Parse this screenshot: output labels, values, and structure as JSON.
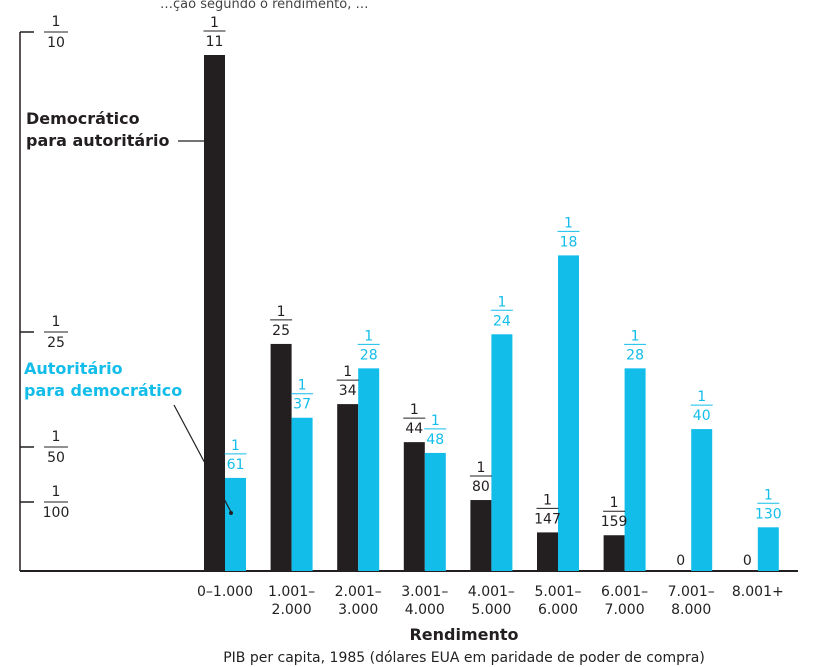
{
  "top_partial_text": "…ção segundo o rendimento, …",
  "chart_data": {
    "type": "bar",
    "title": "",
    "xlabel": "Rendimento",
    "xsublabel": "PIB per capita, 1985 (dólares EUA em paridade de poder de compra)",
    "ylabel": "",
    "categories": [
      [
        "0–1.000",
        ""
      ],
      [
        "1.001–",
        "2.000"
      ],
      [
        "2.001–",
        "3.000"
      ],
      [
        "3.001–",
        "4.000"
      ],
      [
        "4.001–",
        "5.000"
      ],
      [
        "5.001–",
        "6.000"
      ],
      [
        "6.001–",
        "7.000"
      ],
      [
        "7.001–",
        "8.000"
      ],
      [
        "8.001+",
        ""
      ]
    ],
    "y_ticks": [
      {
        "num": "1",
        "den": "10",
        "value": 0.1
      },
      {
        "num": "1",
        "den": "25",
        "value": 0.04
      },
      {
        "num": "1",
        "den": "50",
        "value": 0.02
      },
      {
        "num": "1",
        "den": "100",
        "value": 0.01
      }
    ],
    "series": [
      {
        "name": "Democrático para autoritário",
        "color": "#231f20",
        "labels": [
          "1/11",
          "1/25",
          "1/34",
          "1/44",
          "1/80",
          "1/147",
          "1/159",
          "0",
          "0"
        ],
        "values": [
          0.0909,
          0.04,
          0.0294,
          0.0227,
          0.0125,
          0.0068,
          0.0063,
          0,
          0
        ]
      },
      {
        "name": "Autoritário para democrático",
        "color": "#13bdea",
        "labels": [
          "1/61",
          "1/37",
          "1/28",
          "1/48",
          "1/24",
          "1/18",
          "1/28",
          "1/40",
          "1/130"
        ],
        "values": [
          0.0164,
          0.027,
          0.0357,
          0.0208,
          0.0417,
          0.0556,
          0.0357,
          0.025,
          0.0077
        ]
      }
    ],
    "legend_annotations": {
      "black_line1": "Democrático",
      "black_line2": "para autoritário",
      "blue_line1": "Autoritário",
      "blue_line2": "para democrático"
    }
  }
}
